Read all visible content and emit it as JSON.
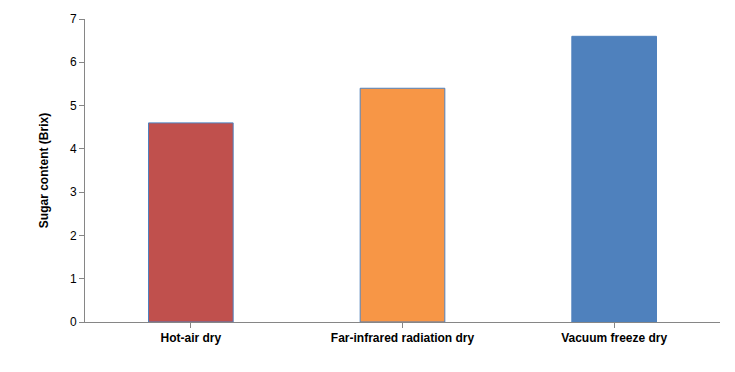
{
  "chart_data": {
    "type": "bar",
    "ylabel": "Sugar content (Brix)",
    "categories": [
      "Hot-air dry",
      "Far-infrared radiation dry",
      "Vacuum freeze dry"
    ],
    "values": [
      4.6,
      5.4,
      6.6
    ],
    "colors": [
      "#c0504d",
      "#f79646",
      "#4f81bd"
    ],
    "ylim": [
      0,
      7
    ],
    "yticks": [
      0,
      1,
      2,
      3,
      4,
      5,
      6,
      7
    ],
    "grid": false
  }
}
